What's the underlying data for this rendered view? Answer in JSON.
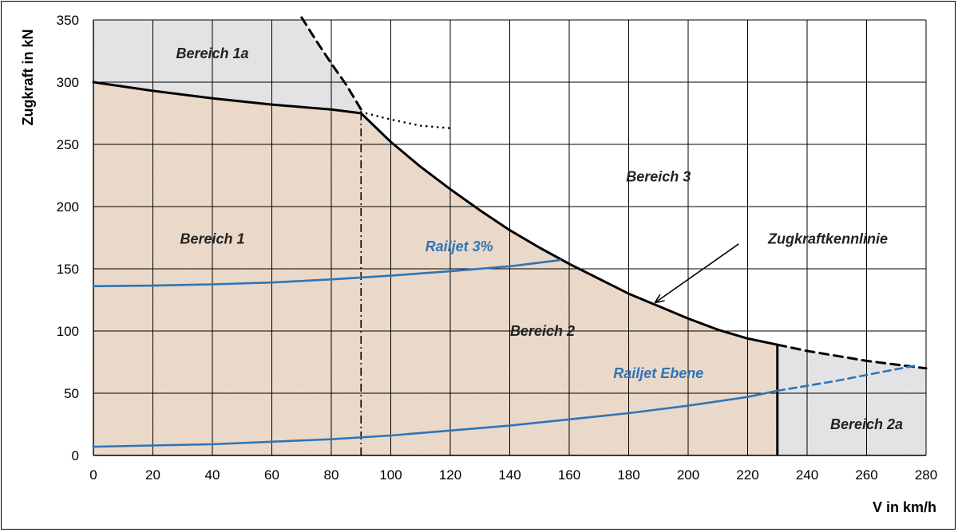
{
  "chart_data": {
    "type": "line",
    "xlabel": "V in km/h",
    "ylabel": "Zugkraft in kN",
    "xlim": [
      0,
      280
    ],
    "ylim": [
      0,
      350
    ],
    "x_ticks": [
      0,
      20,
      40,
      60,
      80,
      100,
      120,
      140,
      160,
      180,
      200,
      220,
      240,
      260,
      280
    ],
    "y_ticks": [
      0,
      50,
      100,
      150,
      200,
      250,
      300,
      350
    ],
    "grid": true,
    "series": [
      {
        "name": "Zugkraftkennlinie",
        "color": "#000000",
        "style": "solid",
        "points": [
          [
            0,
            300
          ],
          [
            20,
            293
          ],
          [
            40,
            287
          ],
          [
            60,
            282
          ],
          [
            80,
            278
          ],
          [
            90,
            275
          ],
          [
            100,
            252
          ],
          [
            110,
            232
          ],
          [
            120,
            214
          ],
          [
            130,
            197
          ],
          [
            140,
            181
          ],
          [
            150,
            167
          ],
          [
            160,
            154
          ],
          [
            170,
            142
          ],
          [
            180,
            130
          ],
          [
            190,
            120
          ],
          [
            200,
            110
          ],
          [
            210,
            101
          ],
          [
            220,
            94
          ],
          [
            230,
            89
          ]
        ]
      },
      {
        "color": "#000000",
        "style": "dashed",
        "points": [
          [
            70,
            352
          ],
          [
            75,
            333
          ],
          [
            80,
            315
          ],
          [
            85,
            298
          ],
          [
            90,
            278
          ]
        ]
      },
      {
        "color": "#000000",
        "style": "dotted",
        "points": [
          [
            90,
            276
          ],
          [
            100,
            270
          ],
          [
            110,
            265
          ],
          [
            120,
            263
          ]
        ]
      },
      {
        "color": "#000000",
        "style": "dashed",
        "points": [
          [
            230,
            89
          ],
          [
            240,
            84
          ],
          [
            250,
            80
          ],
          [
            260,
            76
          ],
          [
            270,
            73
          ],
          [
            280,
            70
          ]
        ]
      },
      {
        "name": "Railjet 3%",
        "color": "#2e75b6",
        "style": "solid",
        "points": [
          [
            0,
            136
          ],
          [
            20,
            136.5
          ],
          [
            40,
            137.5
          ],
          [
            60,
            139
          ],
          [
            80,
            141.5
          ],
          [
            100,
            144.5
          ],
          [
            120,
            148
          ],
          [
            140,
            152
          ],
          [
            157,
            157
          ]
        ]
      },
      {
        "name": "Railjet Ebene",
        "color": "#2e75b6",
        "style": "solid",
        "points": [
          [
            0,
            7
          ],
          [
            20,
            8
          ],
          [
            40,
            9
          ],
          [
            60,
            11
          ],
          [
            80,
            13
          ],
          [
            100,
            16
          ],
          [
            120,
            20
          ],
          [
            140,
            24
          ],
          [
            160,
            29
          ],
          [
            180,
            34
          ],
          [
            200,
            40
          ],
          [
            220,
            47
          ],
          [
            230,
            52
          ]
        ]
      },
      {
        "color": "#2e75b6",
        "style": "dashed",
        "points": [
          [
            230,
            52
          ],
          [
            250,
            60
          ],
          [
            265,
            67
          ],
          [
            276,
            72
          ]
        ]
      }
    ],
    "vertical_lines": [
      {
        "x": 90,
        "y_from": 0,
        "y_to": 275,
        "style": "dashdot",
        "color": "#000000"
      },
      {
        "x": 230,
        "y_from": 0,
        "y_to": 89,
        "style": "solid",
        "color": "#000000"
      }
    ],
    "regions": [
      {
        "label": "Bereich 1a",
        "x": 40,
        "y": 323
      },
      {
        "label": "Bereich 1",
        "x": 40,
        "y": 174
      },
      {
        "label": "Bereich 2",
        "x": 151,
        "y": 100
      },
      {
        "label": "Bereich 2a",
        "x": 260,
        "y": 25
      },
      {
        "label": "Bereich 3",
        "x": 190,
        "y": 224
      }
    ],
    "series_labels": [
      {
        "label": "Railjet 3%",
        "x": 123,
        "y": 168,
        "color": "#2e75b6"
      },
      {
        "label": "Railjet Ebene",
        "x": 190,
        "y": 66,
        "color": "#2e75b6"
      }
    ],
    "annotations": [
      {
        "label": "Zugkraftkennlinie",
        "x": 247,
        "y": 174,
        "arrow_from": [
          217,
          170
        ],
        "arrow_to": [
          189,
          123
        ]
      }
    ],
    "colors": {
      "area_main": "#eedbcb",
      "area_gray": "#e6e6e8",
      "grid": "#000000",
      "blue": "#2e75b6"
    }
  }
}
